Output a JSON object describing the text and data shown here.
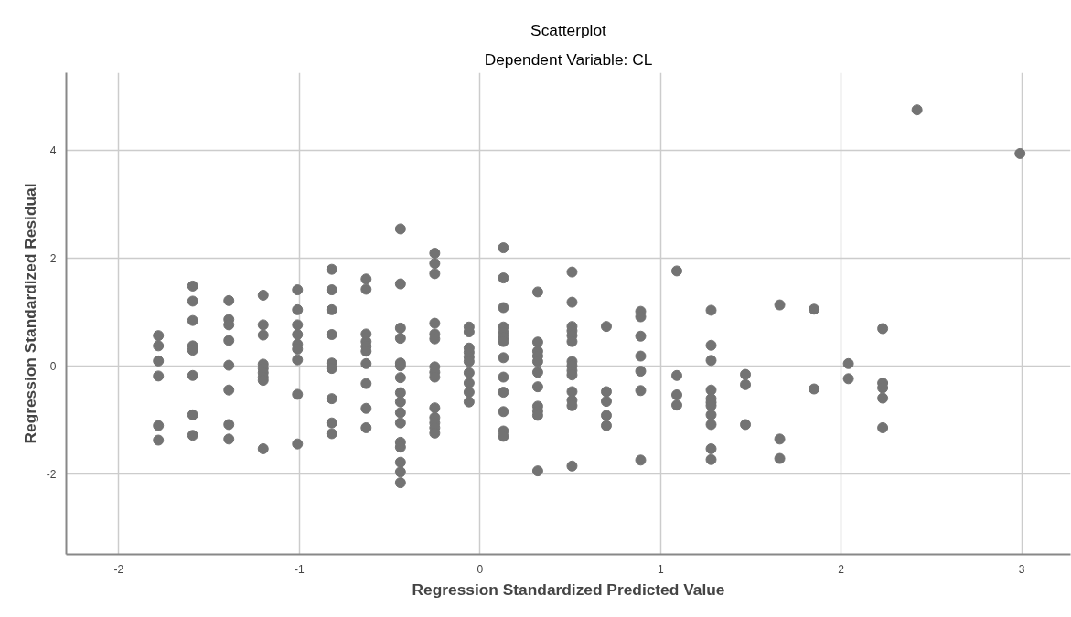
{
  "chart_data": {
    "type": "scatter",
    "title": "Scatterplot",
    "subtitle": "Dependent Variable: CL",
    "xlabel": "Regression Standardized Predicted Value",
    "ylabel": "Regression Standardized Residual",
    "x": [
      -1.78,
      -1.78,
      -1.78,
      -1.78,
      -1.78,
      -1.78,
      -1.59,
      -1.59,
      -1.59,
      -1.59,
      -1.59,
      -1.59,
      -1.59,
      -1.59,
      -1.39,
      -1.39,
      -1.39,
      -1.39,
      -1.39,
      -1.39,
      -1.39,
      -1.39,
      -1.2,
      -1.2,
      -1.2,
      -1.2,
      -1.2,
      -1.2,
      -1.2,
      -1.2,
      -1.2,
      -1.01,
      -1.01,
      -1.01,
      -1.01,
      -1.01,
      -1.01,
      -1.01,
      -1.01,
      -1.01,
      -0.82,
      -0.82,
      -0.82,
      -0.82,
      -0.82,
      -0.82,
      -0.82,
      -0.82,
      -0.82,
      -0.63,
      -0.63,
      -0.63,
      -0.63,
      -0.63,
      -0.63,
      -0.63,
      -0.63,
      -0.63,
      -0.63,
      -0.44,
      -0.44,
      -0.44,
      -0.44,
      -0.44,
      -0.44,
      -0.44,
      -0.44,
      -0.44,
      -0.44,
      -0.44,
      -0.44,
      -0.44,
      -0.44,
      -0.44,
      -0.44,
      -0.25,
      -0.25,
      -0.25,
      -0.25,
      -0.25,
      -0.25,
      -0.25,
      -0.25,
      -0.25,
      -0.25,
      -0.25,
      -0.25,
      -0.25,
      -0.25,
      -0.06,
      -0.06,
      -0.06,
      -0.06,
      -0.06,
      -0.06,
      -0.06,
      -0.06,
      -0.06,
      -0.06,
      0.13,
      0.13,
      0.13,
      0.13,
      0.13,
      0.13,
      0.13,
      0.13,
      0.13,
      0.13,
      0.13,
      0.13,
      0.13,
      0.32,
      0.32,
      0.32,
      0.32,
      0.32,
      0.32,
      0.32,
      0.32,
      0.32,
      0.32,
      0.32,
      0.51,
      0.51,
      0.51,
      0.51,
      0.51,
      0.51,
      0.51,
      0.51,
      0.51,
      0.51,
      0.51,
      0.51,
      0.51,
      0.51,
      0.7,
      0.7,
      0.7,
      0.7,
      0.7,
      0.89,
      0.89,
      0.89,
      0.89,
      0.89,
      0.89,
      0.89,
      1.09,
      1.09,
      1.09,
      1.09,
      1.28,
      1.28,
      1.28,
      1.28,
      1.28,
      1.28,
      1.28,
      1.28,
      1.28,
      1.28,
      1.28,
      1.47,
      1.47,
      1.47,
      1.66,
      1.66,
      1.66,
      1.85,
      1.85,
      2.04,
      2.04,
      2.23,
      2.23,
      2.23,
      2.23,
      2.23,
      2.42,
      2.99
    ],
    "values": [
      0.57,
      0.38,
      0.1,
      -0.18,
      -1.1,
      -1.37,
      1.49,
      1.21,
      0.85,
      0.38,
      0.3,
      -0.17,
      -0.9,
      -1.28,
      1.22,
      0.87,
      0.77,
      0.48,
      0.02,
      -0.44,
      -1.08,
      -1.35,
      1.32,
      0.77,
      0.58,
      0.04,
      -0.04,
      -0.12,
      -0.2,
      -0.26,
      -1.53,
      1.42,
      1.05,
      0.77,
      0.59,
      0.41,
      0.32,
      0.12,
      -0.52,
      -1.44,
      1.8,
      1.42,
      1.05,
      0.59,
      0.06,
      -0.04,
      -0.6,
      -1.05,
      -1.25,
      1.62,
      1.43,
      0.6,
      0.46,
      0.37,
      0.28,
      0.05,
      -0.32,
      -0.78,
      -1.14,
      2.55,
      1.53,
      0.71,
      0.52,
      0.06,
      0.01,
      -0.21,
      -0.49,
      -0.66,
      -0.86,
      -1.05,
      -1.41,
      -1.5,
      -1.78,
      -1.96,
      -2.16,
      2.1,
      1.91,
      1.72,
      0.8,
      0.6,
      0.51,
      -0.01,
      -0.11,
      -0.2,
      -0.77,
      -0.95,
      -1.05,
      -1.14,
      -1.24,
      0.73,
      0.64,
      0.34,
      0.26,
      0.17,
      0.09,
      -0.12,
      -0.31,
      -0.48,
      -0.66,
      2.2,
      1.64,
      1.09,
      0.73,
      0.63,
      0.54,
      0.46,
      0.16,
      -0.2,
      -0.48,
      -0.84,
      -1.2,
      -1.3,
      1.38,
      0.45,
      0.28,
      0.19,
      0.09,
      -0.11,
      -0.38,
      -0.74,
      -0.83,
      -0.91,
      -1.94,
      1.75,
      1.19,
      0.74,
      0.66,
      0.57,
      0.46,
      0.09,
      0.01,
      -0.08,
      -0.16,
      -0.47,
      -0.63,
      -0.73,
      -1.85,
      0.74,
      -0.47,
      -0.65,
      -0.91,
      -1.1,
      1.02,
      0.92,
      0.56,
      0.19,
      -0.09,
      -0.45,
      -1.74,
      1.77,
      -0.17,
      -0.53,
      -0.72,
      1.04,
      0.39,
      0.11,
      -0.44,
      -0.6,
      -0.67,
      -0.73,
      -0.9,
      -1.08,
      -1.53,
      -1.73,
      -0.15,
      -0.34,
      -1.08,
      1.14,
      -1.35,
      -1.71,
      1.06,
      -0.42,
      0.05,
      -0.23,
      0.7,
      -0.31,
      -0.4,
      -0.59,
      -1.14,
      4.76,
      3.95
    ],
    "color": "#737373",
    "marker": "circle",
    "xlim": [
      -2.29,
      3.27
    ],
    "ylim": [
      -3.49,
      5.45
    ],
    "xticks": [
      -2,
      -1,
      0,
      1,
      2,
      3
    ],
    "yticks": [
      -2,
      0,
      2,
      4
    ],
    "grid": true
  }
}
